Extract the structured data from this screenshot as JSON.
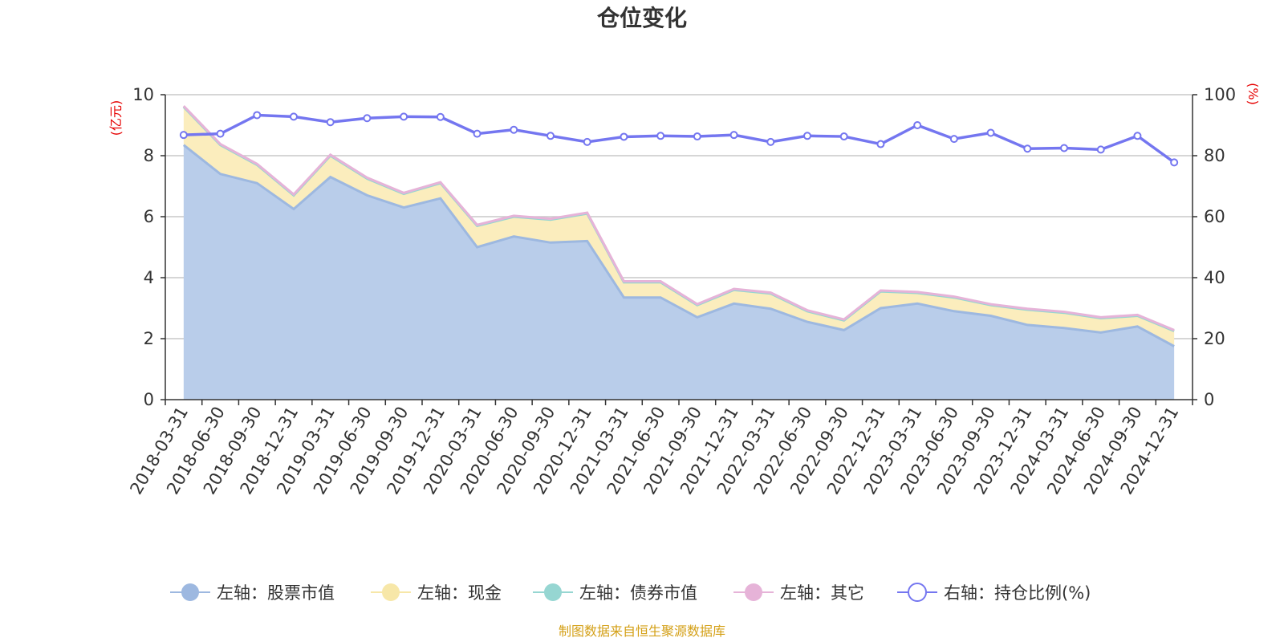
{
  "chart_data": {
    "type": "area",
    "title": "仓位变化",
    "left_unit": "(亿元)",
    "right_unit": "(%)",
    "left_ylim": [
      0,
      10
    ],
    "left_ticks": [
      "0",
      "2",
      "4",
      "6",
      "8",
      "10"
    ],
    "right_ylim": [
      0,
      100
    ],
    "right_ticks": [
      "0",
      "20",
      "40",
      "60",
      "80",
      "100"
    ],
    "categories": [
      "2018-03-31",
      "2018-06-30",
      "2018-09-30",
      "2018-12-31",
      "2019-03-31",
      "2019-06-30",
      "2019-09-30",
      "2019-12-31",
      "2020-03-31",
      "2020-06-30",
      "2020-09-30",
      "2020-12-31",
      "2021-03-31",
      "2021-06-30",
      "2021-09-30",
      "2021-12-31",
      "2022-03-31",
      "2022-06-30",
      "2022-09-30",
      "2022-12-31",
      "2023-03-31",
      "2023-06-30",
      "2023-09-30",
      "2023-12-31",
      "2024-03-31",
      "2024-06-30",
      "2024-09-30",
      "2024-12-31"
    ],
    "series": [
      {
        "name": "左轴：股票市值",
        "axis": "left",
        "stack": true,
        "color": "#9db8e0",
        "fill": "#b9cdea",
        "values": [
          8.35,
          7.4,
          7.1,
          6.25,
          7.3,
          6.7,
          6.3,
          6.6,
          5.0,
          5.35,
          5.15,
          5.2,
          3.35,
          3.35,
          2.7,
          3.15,
          2.98,
          2.55,
          2.28,
          3.0,
          3.15,
          2.9,
          2.75,
          2.45,
          2.35,
          2.2,
          2.4,
          1.75
        ]
      },
      {
        "name": "左轴：现金",
        "axis": "left",
        "stack": true,
        "color": "#f7e7a8",
        "fill": "#fbedbd",
        "values": [
          1.25,
          0.95,
          0.6,
          0.45,
          0.7,
          0.55,
          0.45,
          0.5,
          0.7,
          0.65,
          0.75,
          0.9,
          0.5,
          0.5,
          0.4,
          0.45,
          0.5,
          0.35,
          0.32,
          0.55,
          0.35,
          0.45,
          0.35,
          0.5,
          0.5,
          0.47,
          0.35,
          0.5
        ]
      },
      {
        "name": "左轴：债券市值",
        "axis": "left",
        "stack": true,
        "color": "#96d6d2",
        "fill": "#c4e9e7",
        "values": [
          0,
          0,
          0,
          0,
          0,
          0,
          0,
          0,
          0,
          0,
          0,
          0,
          0,
          0,
          0,
          0,
          0,
          0,
          0,
          0,
          0,
          0,
          0,
          0,
          0,
          0,
          0,
          0
        ]
      },
      {
        "name": "左轴：其它",
        "axis": "left",
        "stack": true,
        "color": "#e6b3d8",
        "fill": "#f2d4ea",
        "values": [
          0.03,
          0.03,
          0.03,
          0.03,
          0.03,
          0.03,
          0.03,
          0.03,
          0.03,
          0.03,
          0.03,
          0.03,
          0.03,
          0.03,
          0.03,
          0.03,
          0.03,
          0.03,
          0.03,
          0.03,
          0.03,
          0.03,
          0.03,
          0.03,
          0.03,
          0.03,
          0.03,
          0.03
        ]
      },
      {
        "name": "右轴：持仓比例(%)",
        "axis": "right",
        "color": "#7476f0",
        "values": [
          86.8,
          87.2,
          93.3,
          92.8,
          91.0,
          92.3,
          92.8,
          92.7,
          87.2,
          88.5,
          86.5,
          84.5,
          86.2,
          86.5,
          86.3,
          86.8,
          84.5,
          86.5,
          86.3,
          83.8,
          90.0,
          85.5,
          87.5,
          82.3,
          82.5,
          82.0,
          86.5,
          77.8
        ]
      }
    ],
    "grid": true,
    "legend_position": "bottom-center"
  },
  "source_note": "制图数据来自恒生聚源数据库"
}
